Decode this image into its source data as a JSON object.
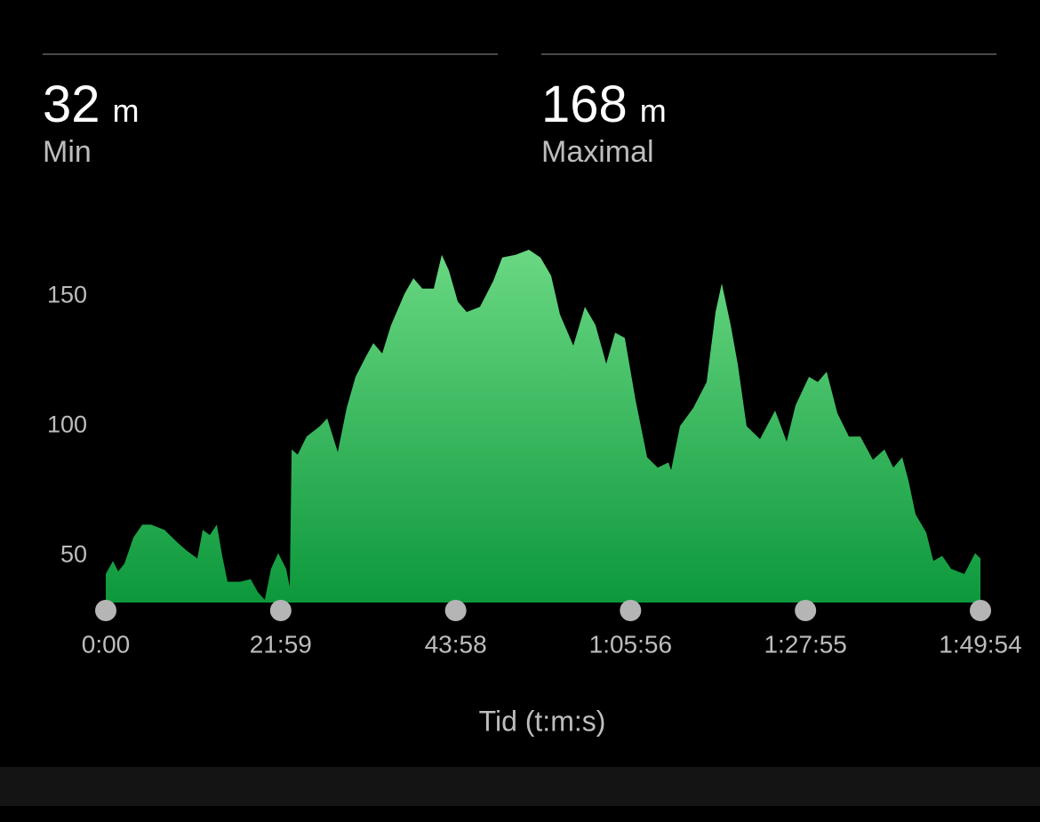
{
  "stats": [
    {
      "value": "32",
      "unit": "m",
      "label": "Min"
    },
    {
      "value": "168",
      "unit": "m",
      "label": "Maximal"
    }
  ],
  "chart_data": {
    "type": "area",
    "x_label": "Tid (t:m:s)",
    "gradient": [
      "#6ad883",
      "#0d983c"
    ],
    "x": [
      0,
      54,
      94,
      141,
      208,
      275,
      342,
      442,
      543,
      610,
      690,
      731,
      784,
      837,
      878,
      918,
      1012,
      1092,
      1146,
      1199,
      1246,
      1300,
      1360,
      1387,
      1401,
      1447,
      1514,
      1615,
      1669,
      1749,
      1816,
      1883,
      1963,
      2017,
      2084,
      2151,
      2252,
      2319,
      2386,
      2473,
      2533,
      2587,
      2654,
      2721,
      2821,
      2922,
      2989,
      3089,
      3190,
      3277,
      3357,
      3424,
      3525,
      3612,
      3692,
      3773,
      3840,
      3913,
      3994,
      4081,
      4161,
      4242,
      4262,
      4329,
      4429,
      4530,
      4597,
      4644,
      4711,
      4764,
      4831,
      4932,
      5046,
      5133,
      5200,
      5301,
      5368,
      5435,
      5515,
      5602,
      5689,
      5783,
      5870,
      5937,
      6004,
      6051,
      6105,
      6185,
      6239,
      6306,
      6373,
      6473,
      6554,
      6594
    ],
    "values": [
      43,
      48,
      44,
      47,
      57,
      62,
      62,
      60,
      55,
      52,
      49,
      60,
      58,
      62,
      50,
      40,
      40,
      41,
      36,
      33,
      45,
      51,
      45,
      38,
      91,
      89,
      96,
      100,
      103,
      90,
      107,
      119,
      127,
      132,
      128,
      139,
      151,
      157,
      153,
      153,
      166,
      160,
      148,
      144,
      146,
      156,
      165,
      166,
      168,
      165,
      158,
      143,
      131,
      146,
      139,
      124,
      136,
      134,
      110,
      88,
      84,
      86,
      83,
      100,
      107,
      117,
      144,
      155,
      139,
      124,
      100,
      95,
      106,
      94,
      108,
      119,
      117,
      121,
      105,
      96,
      96,
      87,
      91,
      84,
      88,
      79,
      66,
      59,
      48,
      50,
      45,
      43,
      51,
      49
    ],
    "xlim": [
      0,
      6594
    ],
    "ylim": [
      32,
      168
    ],
    "xticks": [
      {
        "value": 0,
        "label": "0:00"
      },
      {
        "value": 1319,
        "label": "21:59"
      },
      {
        "value": 2638,
        "label": "43:58"
      },
      {
        "value": 3956,
        "label": "1:05:56"
      },
      {
        "value": 5275,
        "label": "1:27:55"
      },
      {
        "value": 6594,
        "label": "1:49:54"
      }
    ],
    "yticks": [
      50,
      100,
      150
    ]
  }
}
